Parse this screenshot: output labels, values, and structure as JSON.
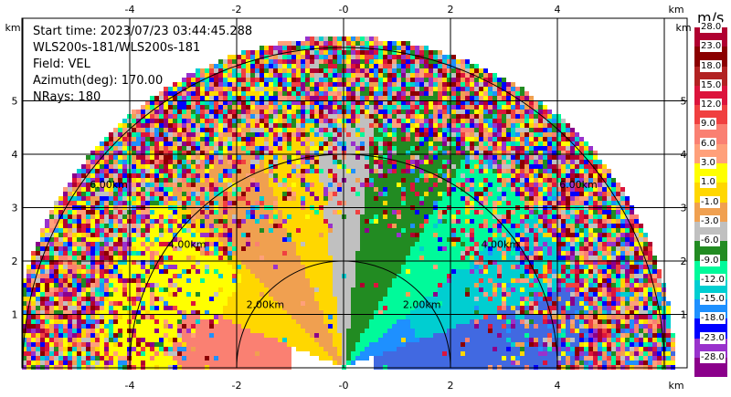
{
  "info": {
    "start_time": "Start time: 2023/07/23 03:44:45.288",
    "instrument": "WLS200s-181/WLS200s-181",
    "field": "Field: VEL",
    "azimuth": "Azimuth(deg): 170.00",
    "nrays": "NRays: 180"
  },
  "axes": {
    "x_unit": "km",
    "y_unit": "km",
    "x_ticks": [
      "-4",
      "-2",
      "-0",
      "2",
      "4"
    ],
    "y_ticks": [
      "1",
      "2",
      "3",
      "4",
      "5"
    ],
    "range_rings": [
      "2.00km",
      "4.00km",
      "6.00km"
    ]
  },
  "colorbar": {
    "unit": "m/s",
    "labels": [
      "28.0",
      "23.0",
      "18.0",
      "15.0",
      "12.0",
      "9.0",
      "6.0",
      "3.0",
      "1.0",
      "-1.0",
      "-3.0",
      "-6.0",
      "-9.0",
      "-12.0",
      "-15.0",
      "-18.0",
      "-23.0",
      "-28.0"
    ],
    "colors": [
      "#b00030",
      "#8b0000",
      "#b22222",
      "#dc143c",
      "#f04040",
      "#fa8072",
      "#ffa07a",
      "#ffff00",
      "#ffd700",
      "#f0a050",
      "#c0c0c0",
      "#228b22",
      "#00fa9a",
      "#00ced1",
      "#1e90ff",
      "#0000ff",
      "#9932cc",
      "#8b008b"
    ]
  }
}
